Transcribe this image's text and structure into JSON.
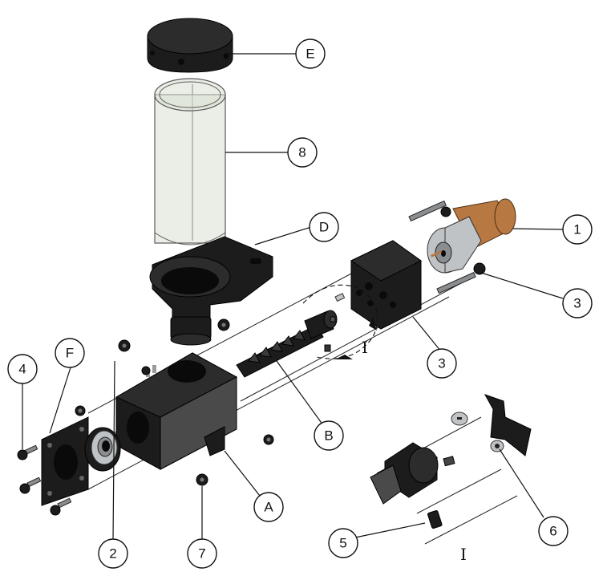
{
  "callouts": {
    "c1": "1",
    "c2": "2",
    "c3a": "3",
    "c3b": "3",
    "c4": "4",
    "c5": "5",
    "c6": "6",
    "c7": "7",
    "c8": "8",
    "cA": "A",
    "cB": "B",
    "cD": "D",
    "cE": "E",
    "cF": "F"
  },
  "view_labels": {
    "detail_marker": "I",
    "detail_title": "I"
  },
  "colors": {
    "part_black": "#1c1c1c",
    "metal": "#bfc3c6",
    "glass_tube": "#d8e0d2",
    "motor_copper": "#b87842"
  }
}
